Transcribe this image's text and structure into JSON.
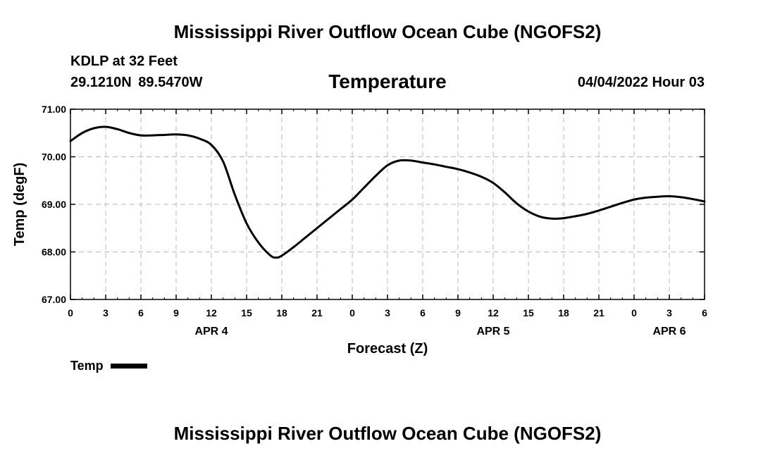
{
  "header": {
    "title": "Mississippi River Outflow Ocean Cube (NGOFS2)",
    "station": "KDLP at 32 Feet",
    "coords": "29.1210N  89.5470W",
    "variable": "Temperature",
    "datetime": "04/04/2022 Hour 03"
  },
  "legend": {
    "label": "Temp"
  },
  "footer": {
    "title": "Mississippi River Outflow Ocean Cube (NGOFS2)"
  },
  "chart_data": {
    "type": "line",
    "title": "Temperature",
    "xlabel": "Forecast (Z)",
    "ylabel": "Temp (degF)",
    "ylim": [
      67.0,
      71.0
    ],
    "yticks": [
      "67.00",
      "68.00",
      "69.00",
      "70.00",
      "71.00"
    ],
    "xlim": [
      0,
      54
    ],
    "xticks": [
      "0",
      "3",
      "6",
      "9",
      "12",
      "15",
      "18",
      "21",
      "0",
      "3",
      "6",
      "9",
      "12",
      "15",
      "18",
      "21",
      "0",
      "3",
      "6"
    ],
    "day_labels": [
      {
        "label": "APR 4",
        "hour": 12
      },
      {
        "label": "APR 5",
        "hour": 36
      },
      {
        "label": "APR 6",
        "hour": 51
      }
    ],
    "grid": true,
    "series": [
      {
        "name": "Temp",
        "color": "#000000",
        "x": [
          0,
          1,
          2,
          3,
          4,
          5,
          6,
          7,
          8,
          9,
          10,
          11,
          12,
          13,
          14,
          15,
          16,
          17,
          17.5,
          18,
          19,
          20,
          21,
          22,
          23,
          24,
          25,
          26,
          27,
          28,
          29,
          30,
          31,
          32,
          33,
          34,
          35,
          36,
          37,
          38,
          39,
          40,
          41,
          42,
          43,
          44,
          45,
          46,
          47,
          48,
          49,
          50,
          51,
          52,
          53,
          54
        ],
        "values": [
          70.33,
          70.5,
          70.6,
          70.63,
          70.58,
          70.5,
          70.45,
          70.45,
          70.46,
          70.47,
          70.45,
          70.38,
          70.25,
          69.9,
          69.2,
          68.6,
          68.2,
          67.93,
          67.88,
          67.92,
          68.1,
          68.3,
          68.5,
          68.7,
          68.9,
          69.1,
          69.35,
          69.6,
          69.82,
          69.92,
          69.92,
          69.88,
          69.84,
          69.79,
          69.74,
          69.67,
          69.58,
          69.45,
          69.25,
          69.02,
          68.85,
          68.74,
          68.7,
          68.71,
          68.75,
          68.8,
          68.87,
          68.95,
          69.03,
          69.1,
          69.14,
          69.16,
          69.17,
          69.15,
          69.11,
          69.06
        ]
      }
    ]
  }
}
